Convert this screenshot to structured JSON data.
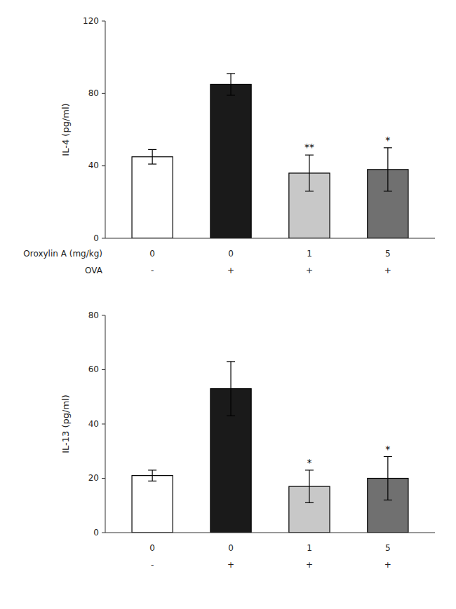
{
  "chart_data": [
    {
      "type": "bar",
      "ylabel": "IL-4 (pg/ml)",
      "ylim": [
        0,
        120
      ],
      "yticks": [
        0,
        40,
        80,
        120
      ],
      "values": [
        45,
        85,
        36,
        38
      ],
      "errors": [
        4,
        6,
        10,
        12
      ],
      "colors": [
        "#ffffff",
        "#1a1a1a",
        "#c8c8c8",
        "#707070"
      ],
      "annotations": [
        null,
        null,
        "**",
        "*"
      ],
      "category_rows": [
        {
          "label": "Oroxylin A (mg/kg)",
          "values": [
            "0",
            "0",
            "1",
            "5"
          ]
        },
        {
          "label": "OVA",
          "values": [
            "-",
            "+",
            "+",
            "+"
          ]
        }
      ]
    },
    {
      "type": "bar",
      "ylabel": "IL-13 (pg/ml)",
      "ylim": [
        0,
        80
      ],
      "yticks": [
        0,
        20,
        40,
        60,
        80
      ],
      "values": [
        21,
        53,
        17,
        20
      ],
      "errors": [
        2,
        10,
        6,
        8
      ],
      "colors": [
        "#ffffff",
        "#1a1a1a",
        "#c8c8c8",
        "#707070"
      ],
      "annotations": [
        null,
        null,
        "*",
        "*"
      ],
      "category_rows": [
        {
          "values": [
            "0",
            "0",
            "1",
            "5"
          ]
        },
        {
          "values": [
            "-",
            "+",
            "+",
            "+"
          ]
        }
      ]
    }
  ]
}
